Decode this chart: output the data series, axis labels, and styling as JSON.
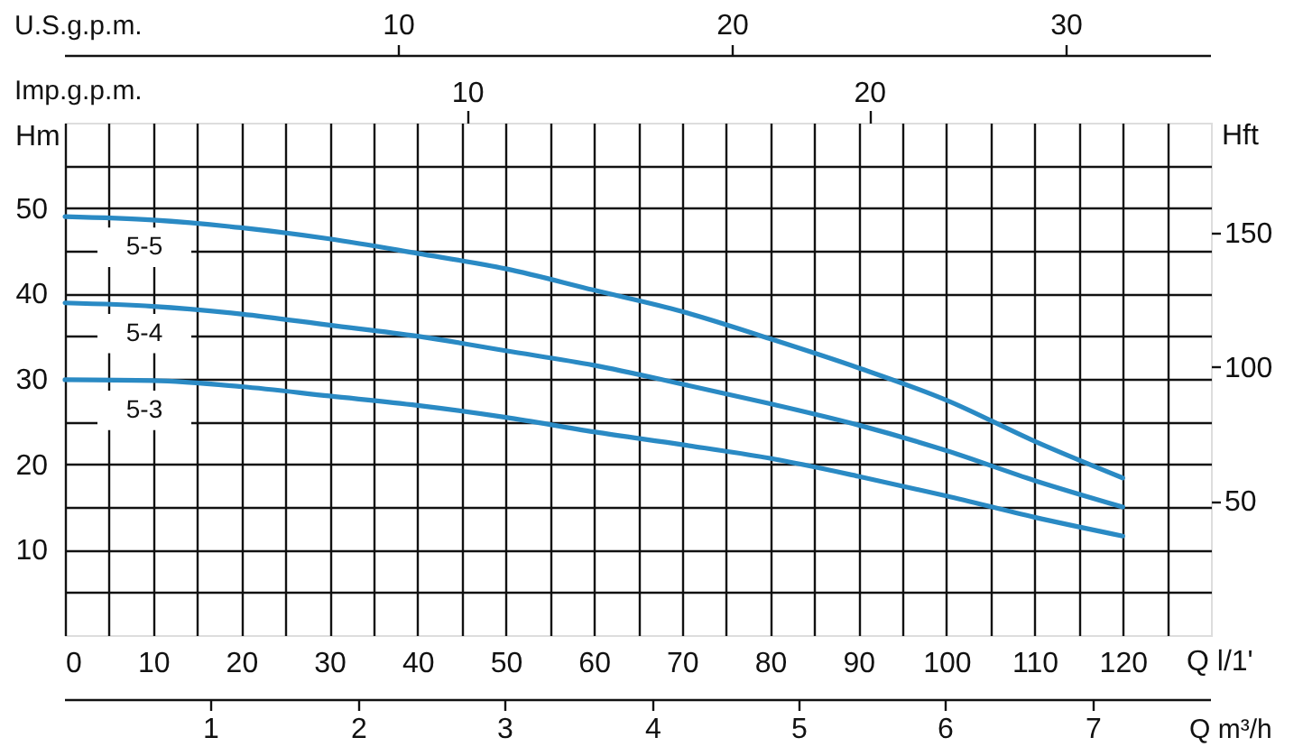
{
  "chart_data": {
    "type": "line",
    "xlabel": "Q l/1'",
    "ylabel": "Hm",
    "y2label": "Hft",
    "x2label": "Imp.g.p.m.",
    "annotations": [
      "U.S.g.p.m.",
      "10",
      "20",
      "30",
      "Q m³/h",
      "1",
      "2",
      "3",
      "4",
      "5",
      "6",
      "7"
    ],
    "x": [
      0,
      10,
      20,
      30,
      40,
      50,
      60,
      70,
      80,
      90,
      100,
      110,
      120
    ],
    "xlim": [
      0,
      130
    ],
    "xticks": [
      0,
      {
        "value": 5,
        "label": null
      },
      10,
      {
        "value": 15,
        "label": null
      },
      20,
      {
        "value": 25,
        "label": null
      },
      30,
      {
        "value": 35,
        "label": null
      },
      40,
      {
        "value": 45,
        "label": null
      },
      50,
      {
        "value": 55,
        "label": null
      },
      60,
      {
        "value": 65,
        "label": null
      },
      70,
      {
        "value": 75,
        "label": null
      },
      80,
      {
        "value": 85,
        "label": null
      },
      90,
      {
        "value": 95,
        "label": null
      },
      100,
      {
        "value": 105,
        "label": null
      },
      110,
      {
        "value": 115,
        "label": null
      },
      120,
      {
        "value": 125,
        "label": null
      }
    ],
    "x2lim": [
      0,
      28.5
    ],
    "x2ticks": [
      10,
      20
    ],
    "ylim": [
      0,
      60
    ],
    "yticks": [
      {
        "value": 5,
        "label": null
      },
      10,
      {
        "value": 15,
        "label": null
      },
      20,
      {
        "value": 25,
        "label": null
      },
      30,
      {
        "value": 35,
        "label": null
      },
      40,
      {
        "value": 45,
        "label": null
      },
      50,
      {
        "value": 55,
        "label": null
      }
    ],
    "y2lim": [
      0,
      191
    ],
    "y2ticks": [
      50,
      100,
      150
    ],
    "series": [
      {
        "name": "5-5",
        "color": "#2a8ac4",
        "values": [
          49.0,
          48.6,
          47.7,
          46.4,
          44.7,
          42.9,
          40.4,
          37.9,
          34.7,
          31.3,
          27.5,
          22.7,
          18.4
        ]
      },
      {
        "name": "5-4",
        "color": "#2a8ac4",
        "values": [
          38.9,
          38.5,
          37.6,
          36.3,
          35.0,
          33.3,
          31.6,
          29.4,
          27.1,
          24.6,
          21.6,
          18.1,
          15.0
        ]
      },
      {
        "name": "5-3",
        "color": "#2a8ac4",
        "values": [
          29.9,
          29.8,
          29.1,
          28.0,
          26.9,
          25.5,
          23.8,
          22.3,
          20.7,
          18.6,
          16.3,
          13.8,
          11.6
        ]
      }
    ],
    "grid": true,
    "line_style": "solid"
  }
}
